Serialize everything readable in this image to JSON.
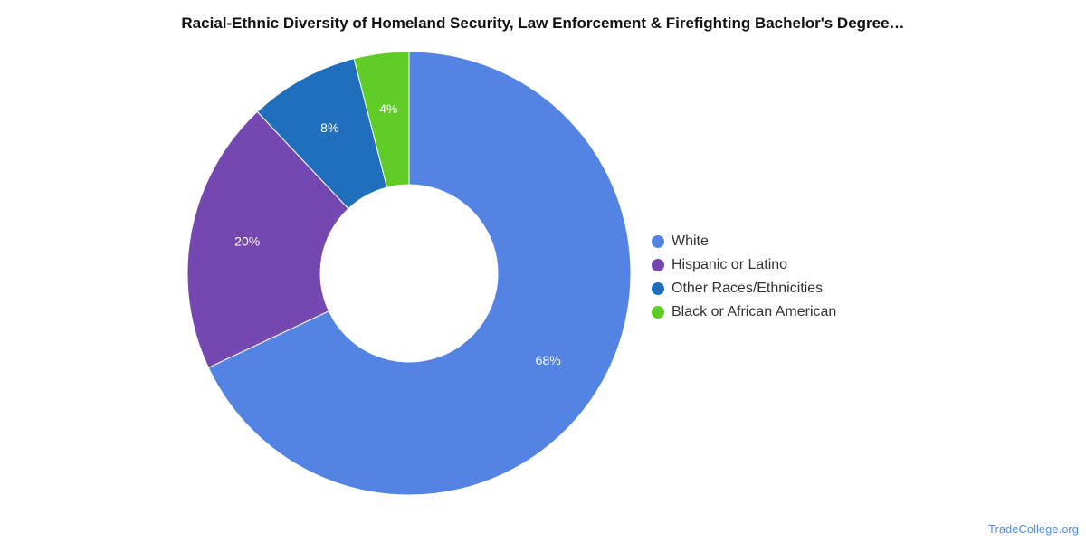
{
  "chart_data": {
    "type": "pie",
    "title": "Racial-Ethnic Diversity of Homeland Security, Law Enforcement & Firefighting Bachelor's Degree…",
    "categories": [
      "White",
      "Hispanic or Latino",
      "Other Races/Ethnicities",
      "Black or African American"
    ],
    "values": [
      68,
      20,
      8,
      4
    ],
    "labels": [
      "68%",
      "20%",
      "8%",
      "4%"
    ],
    "colors": [
      "#5384e3",
      "#7547b0",
      "#1f6fbc",
      "#5fcd26"
    ],
    "legend_position": "right",
    "donut": true
  },
  "watermark": "TradeCollege.org"
}
